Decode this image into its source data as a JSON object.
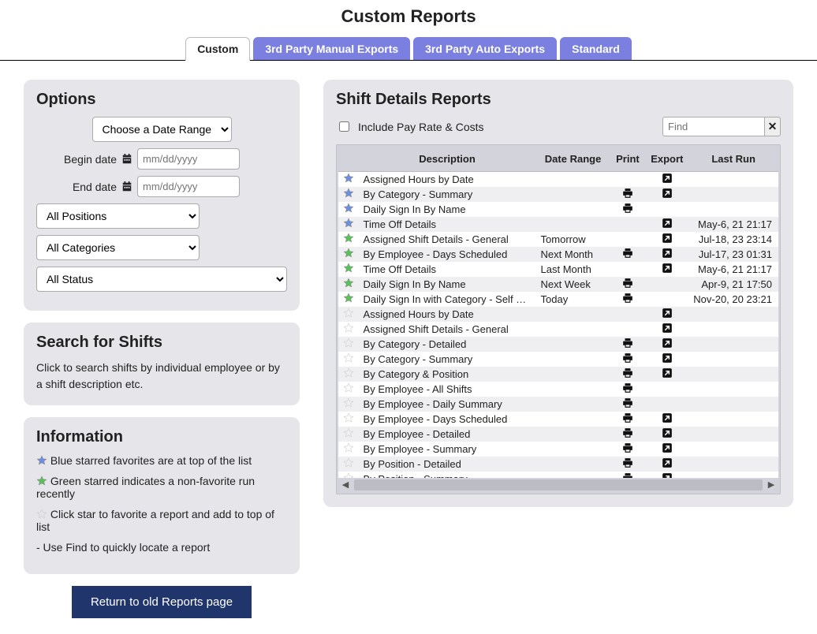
{
  "pageTitle": "Custom Reports",
  "tabs": [
    {
      "label": "Custom",
      "active": true
    },
    {
      "label": "3rd Party Manual Exports",
      "active": false
    },
    {
      "label": "3rd Party Auto Exports",
      "active": false
    },
    {
      "label": "Standard",
      "active": false
    }
  ],
  "options": {
    "title": "Options",
    "dateRangeSelect": "Choose a Date Range",
    "beginLabel": "Begin date",
    "endLabel": "End date",
    "beginPlaceholder": "mm/dd/yyyy",
    "endPlaceholder": "mm/dd/yyyy",
    "positions": "All Positions",
    "categories": "All Categories",
    "status": "All Status"
  },
  "search": {
    "title": "Search for Shifts",
    "text": "Click to search shifts by individual employee or by a  shift description etc."
  },
  "info": {
    "title": "Information",
    "items": [
      {
        "star": "blue",
        "text": "Blue starred favorites are at top of the list"
      },
      {
        "star": "green",
        "text": "Green starred indicates a non-favorite run recently"
      },
      {
        "star": "gray",
        "text": "Click star to favorite a report and add to top of list"
      },
      {
        "star": "",
        "text": "- Use Find to quickly locate a report"
      }
    ]
  },
  "rightPanel": {
    "title": "Shift Details Reports",
    "includeLabel": "Include Pay Rate & Costs",
    "findPlaceholder": "Find",
    "columns": [
      "",
      "Description",
      "Date Range",
      "Print",
      "Export",
      "Last Run"
    ],
    "rows": [
      {
        "star": "blue",
        "desc": "Assigned Hours by Date",
        "range": "",
        "print": false,
        "export": true,
        "last": ""
      },
      {
        "star": "blue",
        "desc": "By Category - Summary",
        "range": "",
        "print": true,
        "export": true,
        "last": ""
      },
      {
        "star": "blue",
        "desc": "Daily Sign In By Name",
        "range": "",
        "print": true,
        "export": false,
        "last": ""
      },
      {
        "star": "blue",
        "desc": "Time Off Details",
        "range": "",
        "print": false,
        "export": true,
        "last": "May-6, 21 21:17"
      },
      {
        "star": "green",
        "desc": "Assigned Shift Details - General",
        "range": "Tomorrow",
        "print": false,
        "export": true,
        "last": "Jul-18, 23 23:14"
      },
      {
        "star": "green",
        "desc": "By Employee - Days Scheduled",
        "range": "Next Month",
        "print": true,
        "export": true,
        "last": "Jul-17, 23 01:31"
      },
      {
        "star": "green",
        "desc": "Time Off Details",
        "range": "Last Month",
        "print": false,
        "export": true,
        "last": "May-6, 21 21:17"
      },
      {
        "star": "green",
        "desc": "Daily Sign In By Name",
        "range": "Next Week",
        "print": true,
        "export": false,
        "last": "Apr-9, 21 17:50"
      },
      {
        "star": "green",
        "desc": "Daily Sign In with Category - Self Ce...",
        "range": "Today",
        "print": true,
        "export": false,
        "last": "Nov-20, 20 23:21"
      },
      {
        "star": "gray",
        "desc": "Assigned Hours by Date",
        "range": "",
        "print": false,
        "export": true,
        "last": ""
      },
      {
        "star": "gray",
        "desc": "Assigned Shift Details - General",
        "range": "",
        "print": false,
        "export": true,
        "last": ""
      },
      {
        "star": "gray",
        "desc": "By Category - Detailed",
        "range": "",
        "print": true,
        "export": true,
        "last": ""
      },
      {
        "star": "gray",
        "desc": "By Category - Summary",
        "range": "",
        "print": true,
        "export": true,
        "last": ""
      },
      {
        "star": "gray",
        "desc": "By Category & Position",
        "range": "",
        "print": true,
        "export": true,
        "last": ""
      },
      {
        "star": "gray",
        "desc": "By Employee - All Shifts",
        "range": "",
        "print": true,
        "export": false,
        "last": ""
      },
      {
        "star": "gray",
        "desc": "By Employee - Daily Summary",
        "range": "",
        "print": true,
        "export": false,
        "last": ""
      },
      {
        "star": "gray",
        "desc": "By Employee - Days Scheduled",
        "range": "",
        "print": true,
        "export": true,
        "last": ""
      },
      {
        "star": "gray",
        "desc": "By Employee - Detailed",
        "range": "",
        "print": true,
        "export": true,
        "last": ""
      },
      {
        "star": "gray",
        "desc": "By Employee - Summary",
        "range": "",
        "print": true,
        "export": true,
        "last": ""
      },
      {
        "star": "gray",
        "desc": "By Position - Detailed",
        "range": "",
        "print": true,
        "export": true,
        "last": ""
      },
      {
        "star": "gray",
        "desc": "By Position - Summary",
        "range": "",
        "print": true,
        "export": true,
        "last": ""
      }
    ]
  },
  "returnBtn": "Return to old Reports page",
  "colors": {
    "starBlue": "#6b8fe0",
    "starGreen": "#57c257",
    "starGray": "#cccccc",
    "tabInactive": "#7a7fe0"
  }
}
